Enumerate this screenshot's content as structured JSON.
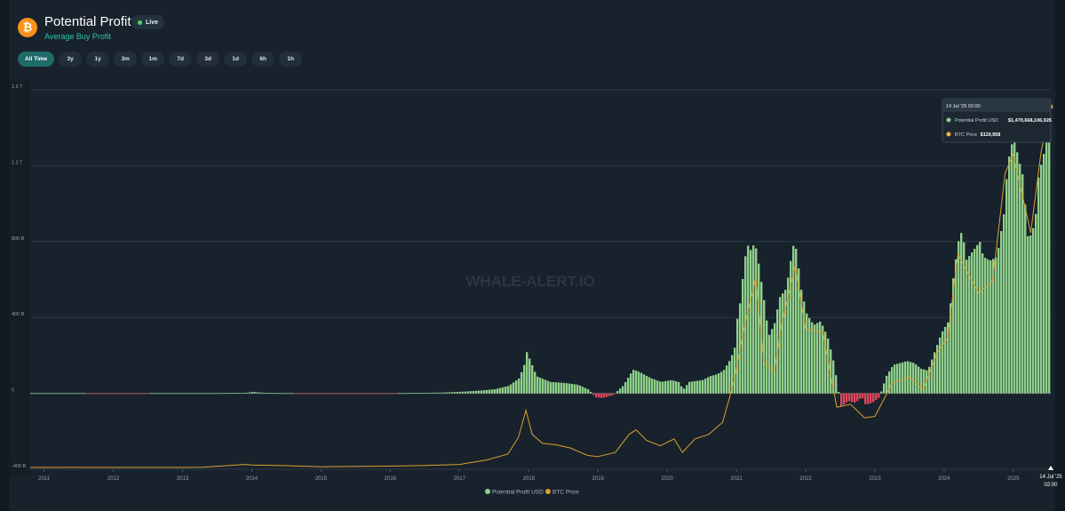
{
  "header": {
    "title": "Potential Profit",
    "subtitle": "Average Buy Profit",
    "live_label": "Live",
    "coin_icon": "bitcoin-icon"
  },
  "range_buttons": [
    "All Time",
    "3y",
    "1y",
    "3m",
    "1m",
    "7d",
    "3d",
    "1d",
    "6h",
    "1h"
  ],
  "active_range": "All Time",
  "watermark": "WHALE-ALERT.IO",
  "tooltip": {
    "date": "14 Jul '25 02:00",
    "rows": [
      {
        "label": "Potential Profit USD",
        "value": "$1,470,668,106,926",
        "color": "#8fd18a"
      },
      {
        "label": "BTC Price",
        "value": "$119,958",
        "color": "#f0b93a"
      }
    ]
  },
  "x_end_label": [
    "14 Jul '25",
    "02:00"
  ],
  "colors": {
    "profit_positive": "#8fd18a",
    "profit_negative": "#e0455b",
    "btc_price": "#d9a12f",
    "accent": "#2fc3b1",
    "active_button": "#1f6b68"
  },
  "chart_data": {
    "type": "bar",
    "x_ticks": [
      "2011",
      "2012",
      "2013",
      "2014",
      "2015",
      "2016",
      "2017",
      "2018",
      "2019",
      "2020",
      "2021",
      "2022",
      "2023",
      "2024",
      "2025"
    ],
    "y_ticks": [
      "1.6 T",
      "1.2 T",
      "800 B",
      "400 B",
      "0",
      "-400 B"
    ],
    "ylim": [
      -400,
      1600
    ],
    "y_unit": "B USD",
    "xlim": [
      2010.8,
      2025.54
    ],
    "grid": true,
    "legend_position": "bottom-center",
    "series": [
      {
        "name": "Potential Profit USD",
        "type": "bar",
        "points": [
          [
            2010.8,
            0
          ],
          [
            2011.3,
            1
          ],
          [
            2011.6,
            0
          ],
          [
            2011.75,
            -2
          ],
          [
            2012.1,
            -1
          ],
          [
            2012.5,
            0
          ],
          [
            2013.0,
            0
          ],
          [
            2013.3,
            0
          ],
          [
            2013.9,
            3
          ],
          [
            2014.0,
            8
          ],
          [
            2014.2,
            2
          ],
          [
            2014.6,
            0
          ],
          [
            2015.0,
            -3
          ],
          [
            2015.5,
            -4
          ],
          [
            2015.9,
            -2
          ],
          [
            2016.3,
            2
          ],
          [
            2016.7,
            4
          ],
          [
            2017.0,
            8
          ],
          [
            2017.3,
            15
          ],
          [
            2017.5,
            22
          ],
          [
            2017.7,
            40
          ],
          [
            2017.85,
            80
          ],
          [
            2017.92,
            150
          ],
          [
            2017.96,
            220
          ],
          [
            2018.0,
            180
          ],
          [
            2018.1,
            90
          ],
          [
            2018.3,
            60
          ],
          [
            2018.5,
            55
          ],
          [
            2018.7,
            45
          ],
          [
            2018.85,
            20
          ],
          [
            2018.95,
            -20
          ],
          [
            2019.05,
            -25
          ],
          [
            2019.2,
            -10
          ],
          [
            2019.35,
            40
          ],
          [
            2019.45,
            100
          ],
          [
            2019.5,
            125
          ],
          [
            2019.6,
            110
          ],
          [
            2019.75,
            80
          ],
          [
            2019.9,
            60
          ],
          [
            2020.05,
            70
          ],
          [
            2020.15,
            60
          ],
          [
            2020.22,
            20
          ],
          [
            2020.3,
            60
          ],
          [
            2020.5,
            70
          ],
          [
            2020.6,
            90
          ],
          [
            2020.7,
            100
          ],
          [
            2020.8,
            120
          ],
          [
            2020.9,
            180
          ],
          [
            2020.97,
            250
          ],
          [
            2021.0,
            400
          ],
          [
            2021.05,
            500
          ],
          [
            2021.1,
            700
          ],
          [
            2021.15,
            780
          ],
          [
            2021.2,
            750
          ],
          [
            2021.25,
            800
          ],
          [
            2021.3,
            700
          ],
          [
            2021.4,
            450
          ],
          [
            2021.45,
            300
          ],
          [
            2021.55,
            380
          ],
          [
            2021.6,
            500
          ],
          [
            2021.7,
            550
          ],
          [
            2021.75,
            650
          ],
          [
            2021.8,
            780
          ],
          [
            2021.85,
            760
          ],
          [
            2021.92,
            550
          ],
          [
            2022.0,
            420
          ],
          [
            2022.1,
            360
          ],
          [
            2022.2,
            380
          ],
          [
            2022.3,
            300
          ],
          [
            2022.4,
            150
          ],
          [
            2022.45,
            30
          ],
          [
            2022.5,
            -70
          ],
          [
            2022.6,
            -40
          ],
          [
            2022.7,
            -50
          ],
          [
            2022.8,
            -20
          ],
          [
            2022.85,
            -60
          ],
          [
            2022.95,
            -50
          ],
          [
            2023.05,
            -20
          ],
          [
            2023.15,
            90
          ],
          [
            2023.25,
            150
          ],
          [
            2023.35,
            160
          ],
          [
            2023.45,
            170
          ],
          [
            2023.55,
            160
          ],
          [
            2023.65,
            130
          ],
          [
            2023.75,
            120
          ],
          [
            2023.85,
            220
          ],
          [
            2023.95,
            320
          ],
          [
            2024.05,
            380
          ],
          [
            2024.12,
            620
          ],
          [
            2024.2,
            820
          ],
          [
            2024.25,
            860
          ],
          [
            2024.3,
            700
          ],
          [
            2024.4,
            750
          ],
          [
            2024.5,
            800
          ],
          [
            2024.55,
            720
          ],
          [
            2024.65,
            700
          ],
          [
            2024.75,
            720
          ],
          [
            2024.85,
            950
          ],
          [
            2024.9,
            1200
          ],
          [
            2024.95,
            1300
          ],
          [
            2025.0,
            1350
          ],
          [
            2025.05,
            1250
          ],
          [
            2025.12,
            1150
          ],
          [
            2025.2,
            800
          ],
          [
            2025.3,
            900
          ],
          [
            2025.35,
            1150
          ],
          [
            2025.45,
            1300
          ],
          [
            2025.54,
            1470
          ]
        ]
      },
      {
        "name": "BTC Price",
        "type": "line",
        "secondary_axis": true,
        "points": [
          [
            2010.8,
            0
          ],
          [
            2011.4,
            15
          ],
          [
            2012.0,
            5
          ],
          [
            2013.0,
            13
          ],
          [
            2013.3,
            100
          ],
          [
            2013.9,
            1000
          ],
          [
            2014.0,
            800
          ],
          [
            2014.5,
            600
          ],
          [
            2015.0,
            250
          ],
          [
            2016.0,
            430
          ],
          [
            2016.5,
            650
          ],
          [
            2017.0,
            1000
          ],
          [
            2017.4,
            2500
          ],
          [
            2017.7,
            4500
          ],
          [
            2017.85,
            10000
          ],
          [
            2017.96,
            19000
          ],
          [
            2018.05,
            11000
          ],
          [
            2018.2,
            8000
          ],
          [
            2018.4,
            7500
          ],
          [
            2018.6,
            6500
          ],
          [
            2018.85,
            4000
          ],
          [
            2019.0,
            3600
          ],
          [
            2019.25,
            5000
          ],
          [
            2019.45,
            11000
          ],
          [
            2019.55,
            12500
          ],
          [
            2019.7,
            9000
          ],
          [
            2019.9,
            7200
          ],
          [
            2020.1,
            9500
          ],
          [
            2020.22,
            5000
          ],
          [
            2020.4,
            9500
          ],
          [
            2020.6,
            11000
          ],
          [
            2020.8,
            15000
          ],
          [
            2020.97,
            29000
          ],
          [
            2021.1,
            45000
          ],
          [
            2021.28,
            63000
          ],
          [
            2021.4,
            35000
          ],
          [
            2021.55,
            32000
          ],
          [
            2021.65,
            47000
          ],
          [
            2021.85,
            67000
          ],
          [
            2022.0,
            46000
          ],
          [
            2022.25,
            45000
          ],
          [
            2022.45,
            20000
          ],
          [
            2022.65,
            21000
          ],
          [
            2022.85,
            16500
          ],
          [
            2023.0,
            17000
          ],
          [
            2023.25,
            28000
          ],
          [
            2023.5,
            30000
          ],
          [
            2023.7,
            26000
          ],
          [
            2023.9,
            38000
          ],
          [
            2024.05,
            43000
          ],
          [
            2024.2,
            71000
          ],
          [
            2024.5,
            58000
          ],
          [
            2024.7,
            62000
          ],
          [
            2024.88,
            98000
          ],
          [
            2025.0,
            104000
          ],
          [
            2025.25,
            78000
          ],
          [
            2025.4,
            105000
          ],
          [
            2025.54,
            119958
          ]
        ]
      }
    ]
  }
}
